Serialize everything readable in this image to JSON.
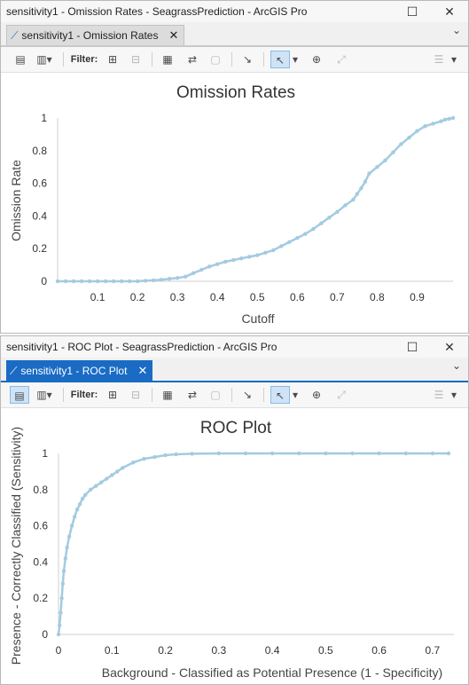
{
  "windows": [
    {
      "title": "sensitivity1 - Omission Rates - SeagrassPrediction - ArcGIS Pro",
      "tab_label": "sensitivity1 - Omission Rates",
      "filter_label": "Filter:"
    },
    {
      "title": "sensitivity1 - ROC Plot - SeagrassPrediction - ArcGIS Pro",
      "tab_label": "sensitivity1 - ROC Plot",
      "filter_label": "Filter:"
    }
  ],
  "icons": {
    "chart_tab": "line-chart-icon",
    "properties": "chart-properties-icon",
    "add_chart": "add-chart-icon",
    "filter_selection": "filter-by-selection-icon",
    "filter_extent": "filter-by-extent-icon",
    "table": "attribute-table-icon",
    "switch_selection": "switch-selection-icon",
    "clear_selection": "clear-selection-icon",
    "export": "export-icon",
    "select": "select-pointer-icon",
    "zoom": "zoom-icon",
    "full_extent": "full-extent-icon",
    "list": "list-options-icon"
  },
  "colors": {
    "line": "#a3cbe0",
    "active_tab": "#1a6bc4"
  },
  "chart_data": [
    {
      "type": "line",
      "title": "Omission Rates",
      "xlabel": "Cutoff",
      "ylabel": "Omission Rate",
      "xlim": [
        0.0,
        0.99
      ],
      "ylim": [
        0,
        1
      ],
      "xticks": [
        0.1,
        0.2,
        0.3,
        0.4,
        0.5,
        0.6,
        0.7,
        0.8,
        0.9
      ],
      "yticks": [
        0,
        0.2,
        0.4,
        0.6,
        0.8,
        1
      ],
      "x": [
        0.0,
        0.02,
        0.04,
        0.06,
        0.08,
        0.1,
        0.12,
        0.14,
        0.16,
        0.18,
        0.2,
        0.22,
        0.24,
        0.26,
        0.28,
        0.3,
        0.32,
        0.34,
        0.36,
        0.38,
        0.4,
        0.42,
        0.44,
        0.46,
        0.48,
        0.5,
        0.52,
        0.54,
        0.56,
        0.58,
        0.6,
        0.62,
        0.64,
        0.66,
        0.68,
        0.7,
        0.72,
        0.74,
        0.75,
        0.76,
        0.77,
        0.78,
        0.8,
        0.82,
        0.84,
        0.86,
        0.88,
        0.9,
        0.92,
        0.94,
        0.96,
        0.97,
        0.98,
        0.99
      ],
      "y": [
        0,
        0,
        0,
        0,
        0,
        0,
        0,
        0,
        0,
        0,
        0,
        0.003,
        0.006,
        0.01,
        0.015,
        0.02,
        0.028,
        0.05,
        0.07,
        0.09,
        0.105,
        0.12,
        0.13,
        0.14,
        0.15,
        0.16,
        0.175,
        0.19,
        0.215,
        0.24,
        0.265,
        0.29,
        0.32,
        0.355,
        0.39,
        0.425,
        0.465,
        0.5,
        0.535,
        0.57,
        0.61,
        0.66,
        0.7,
        0.74,
        0.79,
        0.84,
        0.88,
        0.92,
        0.95,
        0.965,
        0.98,
        0.99,
        0.995,
        1.0
      ]
    },
    {
      "type": "line",
      "title": "ROC Plot",
      "xlabel": "Background - Classified as Potential Presence (1 - Specificity)",
      "ylabel": "Presence - Correctly Classified (Sensitivity)",
      "xlim": [
        0,
        0.74
      ],
      "ylim": [
        0,
        1
      ],
      "xticks": [
        0,
        0.1,
        0.2,
        0.3,
        0.4,
        0.5,
        0.6,
        0.7
      ],
      "yticks": [
        0,
        0.2,
        0.4,
        0.6,
        0.8,
        1
      ],
      "x": [
        0,
        0.002,
        0.004,
        0.006,
        0.008,
        0.01,
        0.013,
        0.016,
        0.02,
        0.025,
        0.03,
        0.035,
        0.04,
        0.045,
        0.05,
        0.06,
        0.07,
        0.08,
        0.09,
        0.1,
        0.11,
        0.12,
        0.14,
        0.16,
        0.18,
        0.2,
        0.22,
        0.25,
        0.3,
        0.35,
        0.4,
        0.45,
        0.5,
        0.55,
        0.6,
        0.65,
        0.7,
        0.73
      ],
      "y": [
        0,
        0.05,
        0.12,
        0.2,
        0.28,
        0.35,
        0.42,
        0.48,
        0.54,
        0.6,
        0.65,
        0.69,
        0.72,
        0.75,
        0.77,
        0.8,
        0.82,
        0.84,
        0.86,
        0.88,
        0.9,
        0.92,
        0.95,
        0.97,
        0.98,
        0.99,
        0.995,
        0.998,
        1,
        1,
        1,
        1,
        1,
        1,
        1,
        1,
        1,
        1
      ]
    }
  ]
}
